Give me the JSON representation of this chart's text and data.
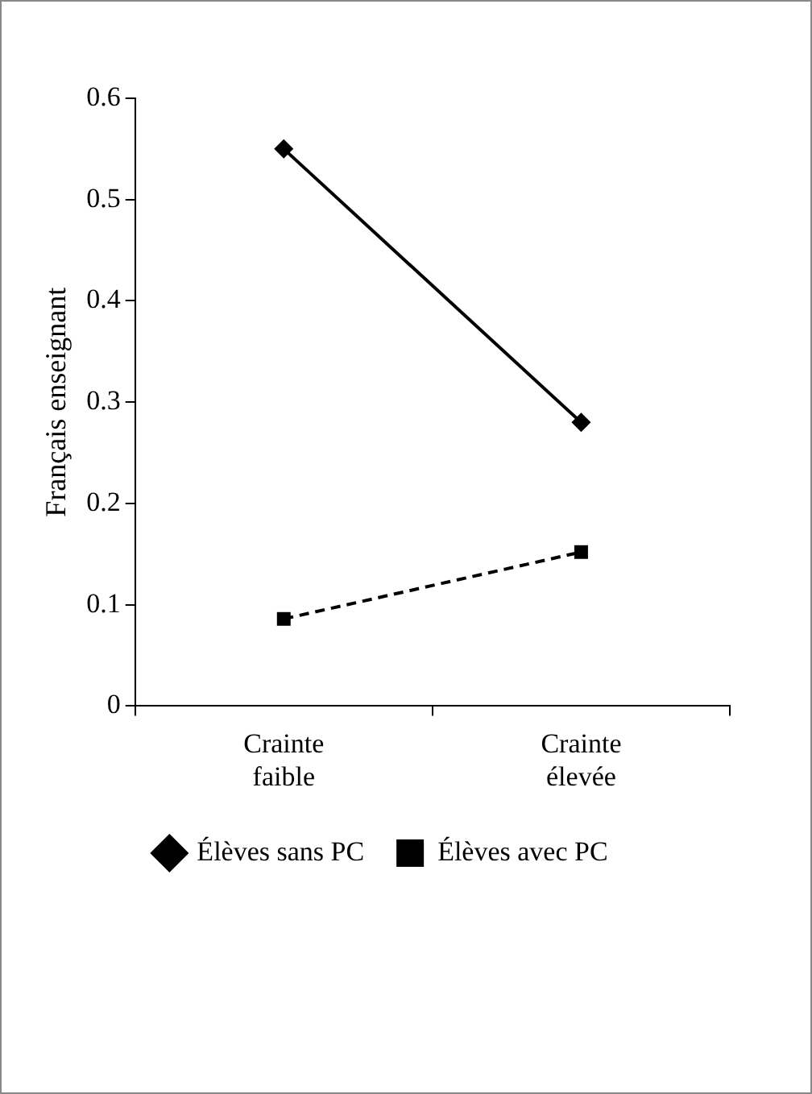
{
  "chart_data": {
    "type": "line",
    "ylabel": "Français enseignant",
    "categories": [
      "Crainte faible",
      "Crainte élevée"
    ],
    "series": [
      {
        "name": "Élèves sans PC",
        "color": "#000000",
        "values": [
          0.55,
          0.28
        ],
        "marker": "diamond",
        "line_style": "solid"
      },
      {
        "name": "Élèves avec PC",
        "color": "#000000",
        "values": [
          0.086,
          0.152
        ],
        "marker": "square",
        "line_style": "dashed"
      }
    ],
    "ylim": [
      0,
      0.6
    ],
    "yticks": [
      0,
      0.1,
      0.2,
      0.3,
      0.4,
      0.5,
      0.6
    ],
    "grid": false,
    "legend": "bottom"
  }
}
